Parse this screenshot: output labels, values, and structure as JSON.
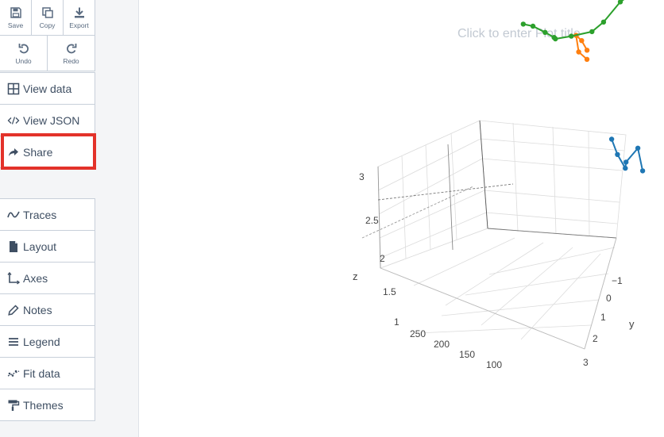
{
  "toolbar": {
    "save_label": "Save",
    "copy_label": "Copy",
    "export_label": "Export",
    "undo_label": "Undo",
    "redo_label": "Redo"
  },
  "menu_top": [
    {
      "label": "View data",
      "icon": "grid-icon"
    },
    {
      "label": "View JSON",
      "icon": "code-icon"
    },
    {
      "label": "Share",
      "icon": "share-icon"
    }
  ],
  "menu_bottom": [
    {
      "label": "Traces",
      "icon": "traces-icon"
    },
    {
      "label": "Layout",
      "icon": "layout-icon"
    },
    {
      "label": "Axes",
      "icon": "axes-icon"
    },
    {
      "label": "Notes",
      "icon": "pencil-icon"
    },
    {
      "label": "Legend",
      "icon": "legend-icon"
    },
    {
      "label": "Fit data",
      "icon": "fit-data-icon"
    },
    {
      "label": "Themes",
      "icon": "paint-roller-icon"
    }
  ],
  "highlight_color": "#e3322a",
  "plot": {
    "title_placeholder": "Click to enter Plot title",
    "z_axis_title": "z",
    "y_axis_title": "y",
    "z_ticks": [
      "3",
      "2.5",
      "2",
      "1.5",
      "1"
    ],
    "x_ticks": [
      "250",
      "200",
      "150",
      "100"
    ],
    "y_ticks": [
      "−1",
      "0",
      "1",
      "2",
      "3"
    ]
  },
  "chart_data": {
    "type": "scatter",
    "mode": "lines+markers",
    "title": "",
    "zlabel": "z",
    "ylabel": "y",
    "xlabel": "",
    "zlim": [
      1,
      3
    ],
    "grid": true,
    "series": [
      {
        "color": "#1f77b4",
        "points": [
          [
            130,
            2.5,
            1.05
          ],
          [
            125,
            2.2,
            1.3
          ],
          [
            140,
            2.0,
            1.2
          ],
          [
            115,
            1.6,
            1.05
          ],
          [
            110,
            1.2,
            1.2
          ],
          [
            100,
            0.8,
            1.35
          ]
        ]
      },
      {
        "color": "#ff7f0e",
        "points": [
          [
            100,
            -0.3,
            2.4
          ],
          [
            95,
            -0.6,
            2.5
          ],
          [
            90,
            -0.9,
            2.55
          ],
          [
            88,
            -0.8,
            2.35
          ],
          [
            86,
            -0.5,
            2.25
          ]
        ]
      },
      {
        "color": "#2ca02c",
        "points": [
          [
            250,
            -0.5,
            3.25
          ],
          [
            245,
            -0.2,
            3.2
          ],
          [
            240,
            0.2,
            3.1
          ],
          [
            230,
            0.4,
            3.0
          ],
          [
            220,
            0.3,
            2.95
          ],
          [
            200,
            0.6,
            2.9
          ],
          [
            175,
            1.0,
            2.85
          ],
          [
            160,
            1.2,
            2.9
          ],
          [
            140,
            1.5,
            3.05
          ],
          [
            120,
            1.8,
            3.1
          ]
        ]
      }
    ]
  }
}
